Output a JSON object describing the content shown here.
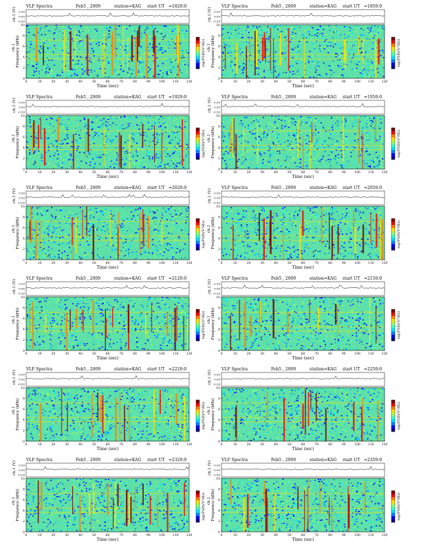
{
  "figure": {
    "title_prefix": "VLF  Spectra",
    "station_label": "station=KAG",
    "start_label": "start  UT",
    "date_label": "Feb5 , 2009",
    "x_axis_label": "Time  (sec)",
    "y_axis_freq_label": "Frequency  (kHz)",
    "y_axis_ch_label": "ch.1",
    "ch_panel_label": "ch.1 (V)",
    "colorbar_label": "log(PSD)(V²/Hz)"
  },
  "chart_data": [
    {
      "type": "heatmap",
      "title": "VLF  Spectra   Feb5 , 2009   station=KAG  start  UT  =1820:0",
      "start_ut": "1820:0",
      "x_ticks": [
        0,
        10,
        20,
        30,
        40,
        50,
        60,
        70,
        80,
        90,
        100,
        110,
        120
      ],
      "y_ticks": [
        0,
        2,
        4,
        6,
        8,
        10
      ],
      "xlim": [
        0,
        120
      ],
      "ylim": [
        0,
        10
      ],
      "ch_ticks": [
        "0.50",
        "0.00",
        "-0.50"
      ],
      "xlabel": "Time  (sec)",
      "ylabel": "Frequency  (kHz)",
      "colorbar": "log(PSD)(V²/Hz)"
    },
    {
      "type": "heatmap",
      "title": "VLF  Spectra   Feb5 , 2009   station=KAG  start  UT  =1850:0",
      "start_ut": "1850:0",
      "x_ticks": [
        0,
        10,
        20,
        30,
        40,
        50,
        60,
        70,
        80,
        90,
        100,
        110,
        120
      ],
      "y_ticks": [
        0,
        2,
        4,
        6,
        8,
        10
      ],
      "xlim": [
        0,
        120
      ],
      "ylim": [
        0,
        10
      ],
      "ch_ticks": [
        "0.50",
        "0.00",
        "-0.50"
      ],
      "xlabel": "Time  (sec)",
      "ylabel": "Frequency  (kHz)",
      "colorbar": "log(PSD)(V²/Hz)"
    },
    {
      "type": "heatmap",
      "title": "VLF  Spectra   Feb5 , 2009   station=KAG  start  UT  =1920:0",
      "start_ut": "1920:0",
      "x_ticks": [
        0,
        10,
        20,
        30,
        40,
        50,
        60,
        70,
        80,
        90,
        100,
        110,
        120
      ],
      "y_ticks": [
        0,
        2,
        4,
        6,
        8,
        10
      ],
      "xlim": [
        0,
        120
      ],
      "ylim": [
        0,
        10
      ],
      "ch_ticks": [
        "0.50",
        "0.00",
        "-0.50"
      ],
      "xlabel": "Time  (sec)",
      "ylabel": "Frequency  (kHz)",
      "colorbar": "log(PSD)(V²/Hz)"
    },
    {
      "type": "heatmap",
      "title": "VLF  Spectra   Feb5 , 2009   station=KAG  start  UT  =1950:0",
      "start_ut": "1950:0",
      "x_ticks": [
        0,
        10,
        20,
        30,
        40,
        50,
        60,
        70,
        80,
        90,
        100,
        110,
        120
      ],
      "y_ticks": [
        0,
        2,
        4,
        6,
        8,
        10
      ],
      "xlim": [
        0,
        120
      ],
      "ylim": [
        0,
        10
      ],
      "ch_ticks": [
        "0.50",
        "0.00",
        "-0.50"
      ],
      "xlabel": "Time  (sec)",
      "ylabel": "Frequency  (kHz)",
      "colorbar": "log(PSD)(V²/Hz)"
    },
    {
      "type": "heatmap",
      "title": "VLF  Spectra   Feb5 , 2009   station=KAG  start  UT  =2020:0",
      "start_ut": "2020:0",
      "x_ticks": [
        0,
        10,
        20,
        30,
        40,
        50,
        60,
        70,
        80,
        90,
        100,
        110,
        120
      ],
      "y_ticks": [
        0,
        2,
        4,
        6,
        8,
        10
      ],
      "xlim": [
        0,
        120
      ],
      "ylim": [
        0,
        10
      ],
      "ch_ticks": [
        "0.50",
        "0.00",
        "-0.50"
      ],
      "xlabel": "Time  (sec)",
      "ylabel": "Frequency  (kHz)",
      "colorbar": "log(PSD)(V²/Hz)"
    },
    {
      "type": "heatmap",
      "title": "VLF  Spectra   Feb5 , 2009   station=KAG  start  UT  =2050:0",
      "start_ut": "2050:0",
      "x_ticks": [
        0,
        10,
        20,
        30,
        40,
        50,
        60,
        70,
        80,
        90,
        100,
        110,
        120
      ],
      "y_ticks": [
        0,
        2,
        4,
        6,
        8,
        10
      ],
      "xlim": [
        0,
        120
      ],
      "ylim": [
        0,
        10
      ],
      "ch_ticks": [
        "0.50",
        "0.00",
        "-0.50"
      ],
      "xlabel": "Time  (sec)",
      "ylabel": "Frequency  (kHz)",
      "colorbar": "log(PSD)(V²/Hz)"
    },
    {
      "type": "heatmap",
      "title": "VLF  Spectra   Feb5 , 2009   station=KAG  start  UT  =2120:0",
      "start_ut": "2120:0",
      "x_ticks": [
        0,
        10,
        20,
        30,
        40,
        50,
        60,
        70,
        80,
        90,
        100,
        110,
        120
      ],
      "y_ticks": [
        0,
        2,
        4,
        6,
        8,
        10
      ],
      "xlim": [
        0,
        120
      ],
      "ylim": [
        0,
        10
      ],
      "ch_ticks": [
        "0.50",
        "0.00",
        "-0.50"
      ],
      "xlabel": "Time  (sec)",
      "ylabel": "Frequency  (kHz)",
      "colorbar": "log(PSD)(V²/Hz)"
    },
    {
      "type": "heatmap",
      "title": "VLF  Spectra   Feb5 , 2009   station=KAG  start  UT  =2150:0",
      "start_ut": "2150:0",
      "x_ticks": [
        0,
        10,
        20,
        30,
        40,
        50,
        60,
        70,
        80,
        90,
        100,
        110,
        120
      ],
      "y_ticks": [
        0,
        2,
        4,
        6,
        8,
        10
      ],
      "xlim": [
        0,
        120
      ],
      "ylim": [
        0,
        10
      ],
      "ch_ticks": [
        "0.50",
        "0.00",
        "-0.50"
      ],
      "xlabel": "Time  (sec)",
      "ylabel": "Frequency  (kHz)",
      "colorbar": "log(PSD)(V²/Hz)"
    },
    {
      "type": "heatmap",
      "title": "VLF  Spectra   Feb5 , 2009   station=KAG  start  UT  =2220:0",
      "start_ut": "2220:0",
      "x_ticks": [
        0,
        10,
        20,
        30,
        40,
        50,
        60,
        70,
        80,
        90,
        100,
        110,
        120
      ],
      "y_ticks": [
        0,
        2,
        4,
        6,
        8,
        10
      ],
      "xlim": [
        0,
        120
      ],
      "ylim": [
        0,
        10
      ],
      "ch_ticks": [
        "0.50",
        "0.00",
        "-0.50"
      ],
      "xlabel": "Time  (sec)",
      "ylabel": "Frequency  (kHz)",
      "colorbar": "log(PSD)(V²/Hz)"
    },
    {
      "type": "heatmap",
      "title": "VLF  Spectra   Feb5 , 2009   station=KAG  start  UT  =2250:0",
      "start_ut": "2250:0",
      "x_ticks": [
        0,
        10,
        20,
        30,
        40,
        50,
        60,
        70,
        80,
        90,
        100,
        110,
        120
      ],
      "y_ticks": [
        0,
        2,
        4,
        6,
        8,
        10
      ],
      "xlim": [
        0,
        120
      ],
      "ylim": [
        0,
        10
      ],
      "ch_ticks": [
        "0.50",
        "0.00",
        "-0.50"
      ],
      "xlabel": "Time  (sec)",
      "ylabel": "Frequency  (kHz)",
      "colorbar": "log(PSD)(V²/Hz)"
    },
    {
      "type": "heatmap",
      "title": "VLF  Spectra   Feb5 , 2009   station=KAG  start  UT  =2320:0",
      "start_ut": "2320:0",
      "x_ticks": [
        0,
        10,
        20,
        30,
        40,
        50,
        60,
        70,
        80,
        90,
        100,
        110,
        120
      ],
      "y_ticks": [
        0,
        2,
        4,
        6,
        8,
        10
      ],
      "xlim": [
        0,
        120
      ],
      "ylim": [
        0,
        10
      ],
      "ch_ticks": [
        "0.50",
        "0.00",
        "-0.50"
      ],
      "xlabel": "Time  (sec)",
      "ylabel": "Frequency  (kHz)",
      "colorbar": "log(PSD)(V²/Hz)"
    },
    {
      "type": "heatmap",
      "title": "VLF  Spectra   Feb5 , 2009   station=KAG  start  UT  =2350:0",
      "start_ut": "2350:0",
      "x_ticks": [
        0,
        10,
        20,
        30,
        40,
        50,
        60,
        70,
        80,
        90,
        100,
        110,
        120
      ],
      "y_ticks": [
        0,
        2,
        4,
        6,
        8,
        10
      ],
      "xlim": [
        0,
        120
      ],
      "ylim": [
        0,
        10
      ],
      "ch_ticks": [
        "0.50",
        "0.00",
        "-0.50"
      ],
      "xlabel": "Time  (sec)",
      "ylabel": "Frequency  (kHz)",
      "colorbar": "log(PSD)(V²/Hz)"
    }
  ],
  "colors": {
    "colormap": [
      "#00007f",
      "#0000ff",
      "#0080ff",
      "#00e0ff",
      "#40ffc0",
      "#9cff5c",
      "#ffe000",
      "#ff8000",
      "#ff0000",
      "#7f0000"
    ],
    "background_fill": "#5fe0a8",
    "axis": "#000000"
  }
}
